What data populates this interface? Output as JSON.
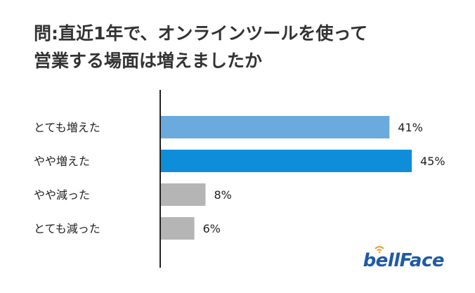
{
  "title": {
    "line1": "問:直近1年で、オンラインツールを使って",
    "line2": "営業する場面は増えましたか"
  },
  "logo": {
    "text": "bellFace"
  },
  "colors": {
    "bar_light": "#6aaadc",
    "bar_blue": "#0e8ed8",
    "bar_gray": "#b5b5b5",
    "axis": "#222222",
    "label_text": "#222222",
    "logo": "#1e5aa8"
  },
  "chart_data": {
    "type": "bar",
    "orientation": "horizontal",
    "categories": [
      "とても増えた",
      "やや増えた",
      "やや減った",
      "とても減った"
    ],
    "values": [
      41,
      45,
      8,
      6
    ],
    "value_labels": [
      "41%",
      "45%",
      "8%",
      "6%"
    ],
    "bar_colors": [
      "#6aaadc",
      "#0e8ed8",
      "#b5b5b5",
      "#b5b5b5"
    ],
    "unit": "%",
    "xlim": [
      0,
      45
    ],
    "grid": false,
    "legend": "none"
  }
}
